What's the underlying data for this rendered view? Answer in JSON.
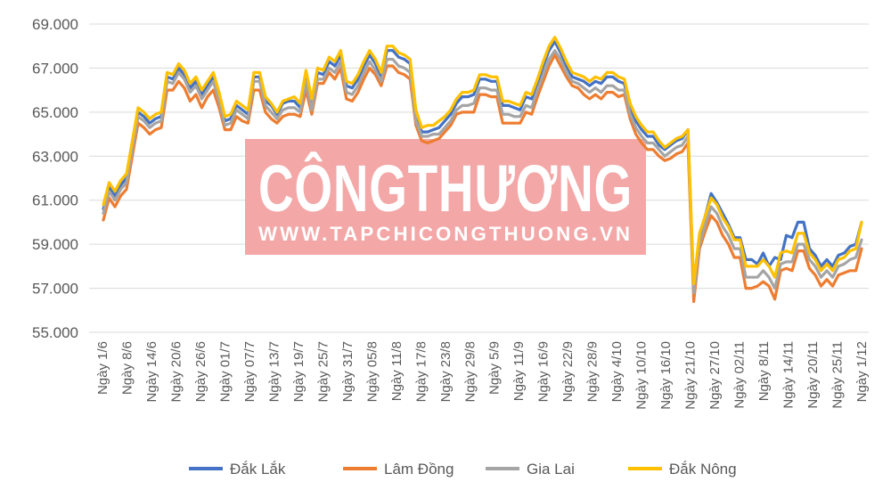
{
  "watermark": {
    "title": "CÔNGTHƯƠNG",
    "url": "WWW.TAPCHICONGTHUONG.VN",
    "color": "#f3a7a7"
  },
  "chart_data": {
    "type": "line",
    "title": "",
    "xlabel": "",
    "ylabel": "",
    "ylim": [
      55000,
      69000
    ],
    "yticks": [
      55000,
      57000,
      59000,
      61000,
      63000,
      65000,
      67000,
      69000
    ],
    "ytick_labels": [
      "55.000",
      "57.000",
      "59.000",
      "61.000",
      "63.000",
      "65.000",
      "67.000",
      "69.000"
    ],
    "grid": true,
    "legend_position": "bottom",
    "x_labels": [
      "Ngày 1/6",
      "Ngày 8/6",
      "Ngày 14/6",
      "Ngày 20/6",
      "Ngày 26/6",
      "Ngày 01/7",
      "Ngày 07/7",
      "Ngày 13/7",
      "Ngày 19/7",
      "Ngày 25/7",
      "Ngày 31/7",
      "Ngày 05/8",
      "Ngày 11/8",
      "Ngày 17/8",
      "Ngày 23/8",
      "Ngày 29/8",
      "Ngày 5/9",
      "Ngày 11/9",
      "Ngày 16/9",
      "Ngày 22/9",
      "Ngày 28/9",
      "Ngày 4/10",
      "Ngày 10/10",
      "Ngày 16/10",
      "Ngày 21/10",
      "Ngày 27/10",
      "Ngày 02/11",
      "Ngày 8/11",
      "Ngày 14/11",
      "Ngày 20/11",
      "Ngày 25/11",
      "Ngày 1/12"
    ],
    "series": [
      {
        "name": "Đắk Lắk",
        "color": "#4472c4",
        "values": [
          60600,
          61600,
          61200,
          61700,
          62000,
          63500,
          65000,
          64800,
          64500,
          64700,
          64800,
          66600,
          66500,
          67000,
          66700,
          66100,
          66400,
          65800,
          66200,
          66600,
          65700,
          64600,
          64700,
          65300,
          65100,
          64900,
          66600,
          66600,
          65500,
          65300,
          64900,
          65400,
          65500,
          65500,
          65200,
          66700,
          65400,
          66800,
          66700,
          67300,
          67100,
          67600,
          66200,
          66100,
          66500,
          67100,
          67600,
          67200,
          66600,
          67800,
          67800,
          67500,
          67400,
          67200,
          64900,
          64100,
          64100,
          64200,
          64300,
          64600,
          64900,
          65400,
          65700,
          65700,
          65800,
          66500,
          66500,
          66400,
          66400,
          65300,
          65300,
          65200,
          65100,
          65700,
          65600,
          66300,
          67100,
          67800,
          68200,
          67700,
          67100,
          66600,
          66500,
          66400,
          66200,
          66400,
          66300,
          66600,
          66600,
          66400,
          66300,
          65200,
          64600,
          64200,
          63900,
          63900,
          63500,
          63300,
          63500,
          63700,
          63800,
          64200,
          56800,
          59200,
          60300,
          61300,
          60900,
          60400,
          59900,
          59300,
          59300,
          58300,
          58300,
          58100,
          58600,
          58000,
          58400,
          58300,
          59400,
          59300,
          60000,
          60000,
          58800,
          58500,
          58000,
          58300,
          58000,
          58500,
          58600,
          58900,
          59000,
          60000
        ]
      },
      {
        "name": "Lâm Đồng",
        "color": "#ed7d31",
        "values": [
          60100,
          61100,
          60700,
          61200,
          61500,
          63000,
          64500,
          64300,
          64000,
          64200,
          64300,
          66000,
          66000,
          66400,
          66100,
          65500,
          65800,
          65200,
          65700,
          66000,
          65200,
          64200,
          64200,
          64800,
          64600,
          64500,
          66000,
          66000,
          65000,
          64700,
          64500,
          64800,
          64900,
          64900,
          64800,
          66000,
          64900,
          66300,
          66300,
          66800,
          66500,
          67000,
          65600,
          65500,
          65900,
          66500,
          67000,
          66700,
          66200,
          67100,
          67100,
          66800,
          66700,
          66500,
          64400,
          63700,
          63600,
          63700,
          63800,
          64100,
          64400,
          64900,
          65000,
          65000,
          65000,
          65800,
          65800,
          65700,
          65700,
          64500,
          64500,
          64500,
          64500,
          65000,
          64900,
          65700,
          66400,
          67100,
          67600,
          67100,
          66600,
          66200,
          66100,
          65800,
          65600,
          65800,
          65600,
          65900,
          65900,
          65700,
          65800,
          64700,
          64000,
          63600,
          63300,
          63300,
          63000,
          62800,
          62900,
          63100,
          63200,
          63600,
          56400,
          58800,
          59600,
          60300,
          60000,
          59400,
          59000,
          58400,
          58400,
          57000,
          57000,
          57100,
          57300,
          57100,
          56500,
          57800,
          57900,
          57800,
          58700,
          58700,
          57900,
          57600,
          57100,
          57400,
          57100,
          57600,
          57700,
          57800,
          57800,
          58800
        ]
      },
      {
        "name": "Gia Lai",
        "color": "#a5a5a5",
        "values": [
          60400,
          61400,
          61000,
          61500,
          61800,
          63300,
          64800,
          64600,
          64300,
          64500,
          64600,
          66400,
          66300,
          66800,
          66500,
          65900,
          66200,
          65600,
          66000,
          66400,
          65500,
          64400,
          64500,
          65100,
          64900,
          64700,
          66400,
          66400,
          65300,
          65000,
          64700,
          65100,
          65200,
          65200,
          65000,
          66400,
          65100,
          66500,
          66500,
          67000,
          66800,
          67300,
          65900,
          65800,
          66200,
          66800,
          67300,
          66900,
          66400,
          67400,
          67400,
          67100,
          67000,
          66800,
          64600,
          63900,
          63900,
          64000,
          64000,
          64300,
          64600,
          65100,
          65300,
          65300,
          65400,
          66100,
          66100,
          66000,
          66000,
          64900,
          64900,
          64800,
          64800,
          65300,
          65200,
          66000,
          66700,
          67400,
          67800,
          67400,
          66800,
          66400,
          66300,
          66100,
          65900,
          66100,
          65900,
          66200,
          66200,
          66000,
          66000,
          64900,
          64300,
          63900,
          63600,
          63600,
          63300,
          63000,
          63200,
          63400,
          63500,
          63900,
          56800,
          59000,
          59900,
          60700,
          60400,
          59800,
          59400,
          58800,
          58800,
          57500,
          57500,
          57500,
          57800,
          57500,
          57000,
          58100,
          58200,
          58200,
          59000,
          59000,
          58300,
          58000,
          57500,
          57800,
          57500,
          58000,
          58100,
          58300,
          58400,
          59200
        ]
      },
      {
        "name": "Đắk Nông",
        "color": "#ffc000",
        "values": [
          60800,
          61800,
          61400,
          61900,
          62200,
          63700,
          65200,
          65000,
          64700,
          64900,
          65000,
          66800,
          66700,
          67200,
          66900,
          66300,
          66600,
          66000,
          66400,
          66800,
          65900,
          64800,
          64900,
          65500,
          65300,
          65100,
          66800,
          66800,
          65700,
          65400,
          65000,
          65500,
          65600,
          65700,
          65400,
          66900,
          65600,
          67000,
          66900,
          67500,
          67300,
          67800,
          66400,
          66300,
          66700,
          67300,
          67800,
          67400,
          66800,
          68000,
          68000,
          67700,
          67600,
          67400,
          65100,
          64300,
          64400,
          64400,
          64600,
          64800,
          65100,
          65600,
          65900,
          65900,
          66000,
          66700,
          66700,
          66600,
          66600,
          65500,
          65500,
          65400,
          65300,
          65900,
          65800,
          66500,
          67300,
          68000,
          68400,
          67900,
          67300,
          66800,
          66700,
          66600,
          66400,
          66600,
          66500,
          66800,
          66800,
          66600,
          66500,
          65400,
          64800,
          64400,
          64100,
          64100,
          63700,
          63400,
          63600,
          63800,
          63900,
          64200,
          57200,
          59500,
          60300,
          61100,
          60800,
          60200,
          59800,
          59200,
          59200,
          58000,
          58000,
          58000,
          58300,
          58000,
          57500,
          58600,
          58700,
          58600,
          59500,
          59500,
          58600,
          58300,
          57800,
          58100,
          57800,
          58300,
          58400,
          58700,
          58800,
          60000
        ]
      }
    ]
  }
}
